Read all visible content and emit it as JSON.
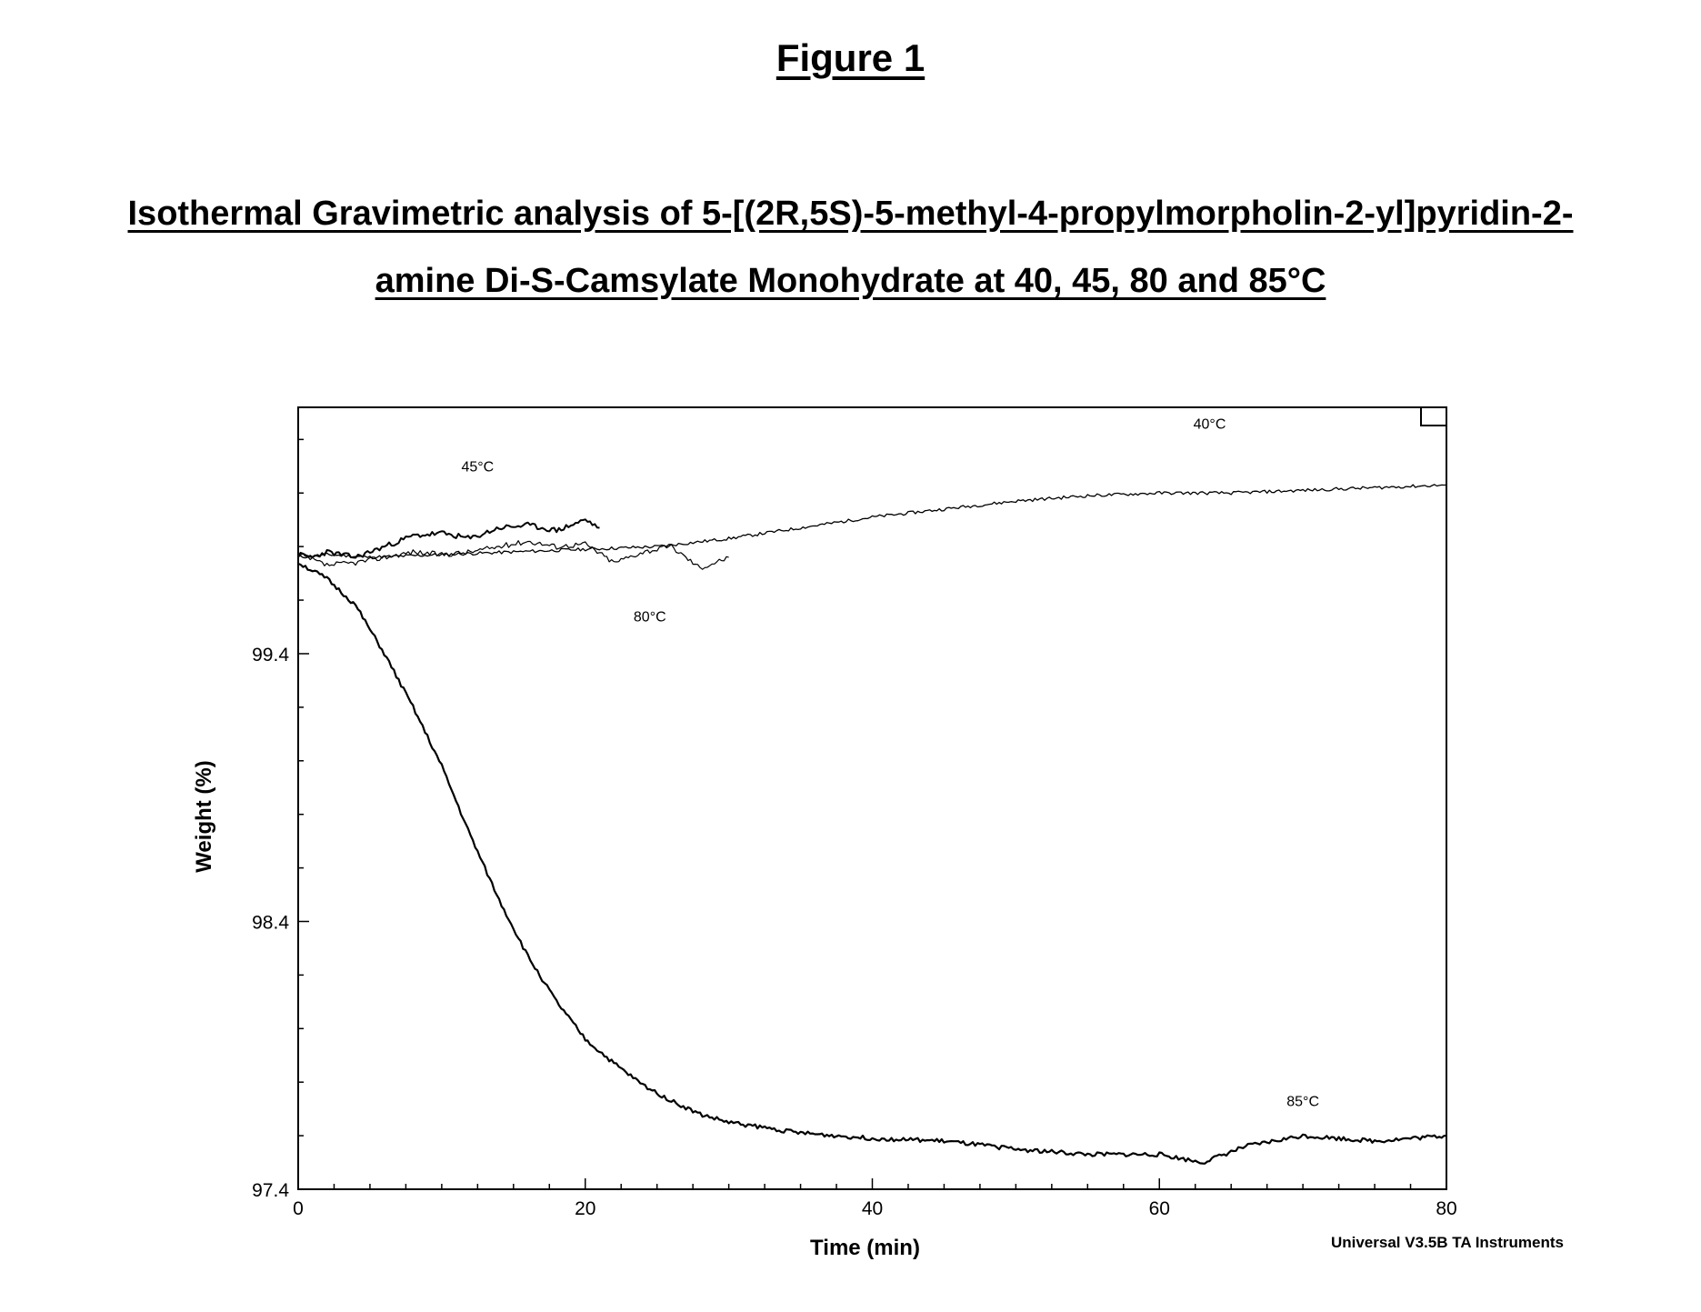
{
  "figure_label": "Figure 1",
  "title_lines": [
    "Isothermal Gravimetric analysis of 5-[(2R,5S)-5-methyl-4-propylmorpholin-2-yl]pyridin-2-",
    "amine Di-S-Camsylate Monohydrate at 40, 45, 80 and 85°C"
  ],
  "credit": "Universal V3.5B TA Instruments",
  "chart_data": {
    "type": "line",
    "title": "Isothermal Gravimetric analysis of 5-[(2R,5S)-5-methyl-4-propylmorpholin-2-yl]pyridin-2-amine Di-S-Camsylate Monohydrate at 40, 45, 80 and 85°C",
    "xlabel": "Time (min)",
    "ylabel": "Weight (%)",
    "xlim": [
      0,
      80
    ],
    "ylim": [
      97.4,
      100.32
    ],
    "x_ticks": [
      0,
      20,
      40,
      60,
      80
    ],
    "x_tick_labels": [
      "0",
      "20",
      "40",
      "60",
      "80"
    ],
    "y_ticks": [
      97.4,
      98.4,
      99.4
    ],
    "y_tick_labels": [
      "97.4",
      "98.4",
      "99.4"
    ],
    "grid": false,
    "series": [
      {
        "name": "40°C",
        "x": [
          0,
          2,
          5,
          10,
          15,
          20,
          25,
          30,
          35,
          40,
          45,
          50,
          55,
          60,
          65,
          70,
          75,
          80
        ],
        "y": [
          99.76,
          99.77,
          99.76,
          99.77,
          99.78,
          99.79,
          99.8,
          99.83,
          99.87,
          99.91,
          99.94,
          99.97,
          99.99,
          100.0,
          100.0,
          100.01,
          100.02,
          100.03
        ]
      },
      {
        "name": "45°C",
        "x": [
          0,
          1,
          2,
          4,
          6,
          8,
          10,
          12,
          14,
          16,
          18,
          20,
          21
        ],
        "y": [
          99.77,
          99.76,
          99.78,
          99.76,
          99.8,
          99.84,
          99.85,
          99.83,
          99.87,
          99.88,
          99.86,
          99.9,
          99.87
        ]
      },
      {
        "name": "80°C",
        "x": [
          0,
          2,
          4,
          6,
          8,
          10,
          12,
          14,
          16,
          18,
          20,
          22,
          24,
          26,
          28,
          30
        ],
        "y": [
          99.77,
          99.73,
          99.74,
          99.76,
          99.78,
          99.77,
          99.78,
          99.8,
          99.82,
          99.8,
          99.81,
          99.74,
          99.78,
          99.8,
          99.72,
          99.76
        ]
      },
      {
        "name": "85°C",
        "x": [
          0,
          2,
          4,
          6,
          8,
          10,
          12,
          14,
          16,
          18,
          20,
          22,
          24,
          26,
          28,
          30,
          35,
          40,
          45,
          50,
          55,
          60,
          63,
          66,
          68,
          70,
          75,
          80
        ],
        "y": [
          99.74,
          99.68,
          99.58,
          99.4,
          99.2,
          98.98,
          98.72,
          98.48,
          98.27,
          98.1,
          97.96,
          97.87,
          97.79,
          97.73,
          97.68,
          97.65,
          97.61,
          97.59,
          97.58,
          97.55,
          97.53,
          97.53,
          97.5,
          97.56,
          97.58,
          97.6,
          97.58,
          97.6
        ]
      }
    ],
    "annotations": [
      "45°C",
      "40°C",
      "80°C",
      "85°C"
    ]
  }
}
